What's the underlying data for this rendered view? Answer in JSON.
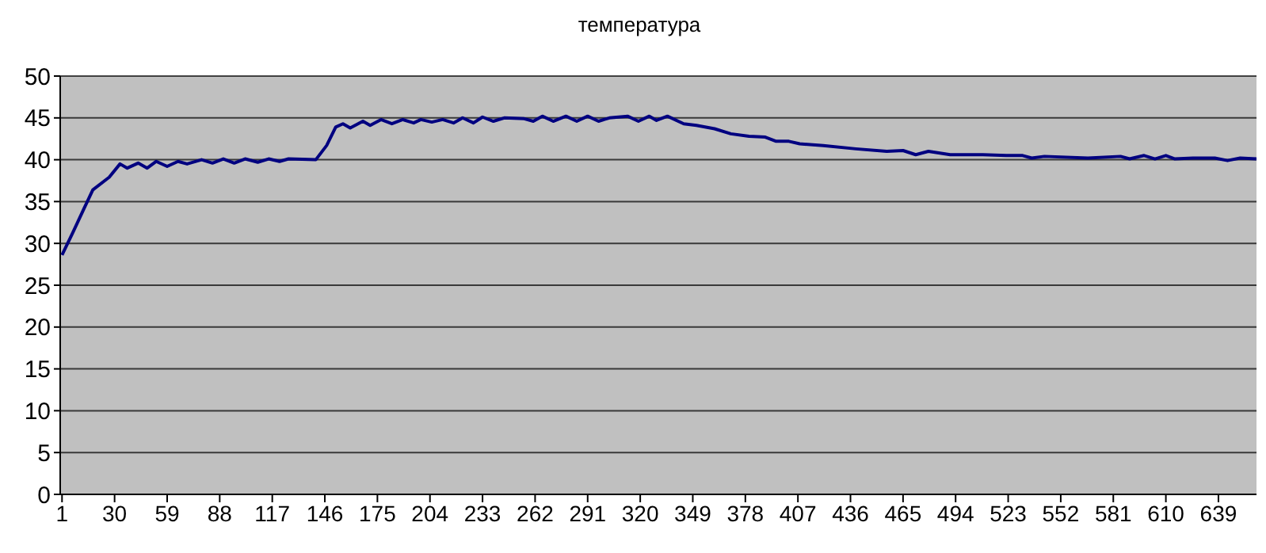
{
  "chart_data": {
    "type": "line",
    "title": "температура",
    "x": [
      1,
      7,
      13,
      18,
      27,
      33,
      37,
      43,
      48,
      53,
      59,
      65,
      70,
      78,
      84,
      90,
      96,
      102,
      109,
      115,
      121,
      126,
      141,
      147,
      152,
      156,
      160,
      167,
      171,
      177,
      183,
      189,
      195,
      199,
      205,
      211,
      217,
      222,
      228,
      233,
      239,
      245,
      256,
      261,
      266,
      272,
      279,
      285,
      291,
      297,
      303,
      313,
      319,
      325,
      329,
      335,
      344,
      351,
      361,
      370,
      380,
      389,
      395,
      402,
      408,
      421,
      439,
      456,
      465,
      472,
      479,
      491,
      509,
      522,
      531,
      536,
      543,
      567,
      585,
      590,
      598,
      604,
      610,
      615,
      625,
      637,
      644,
      651,
      660
    ],
    "series": [
      {
        "color": "#000080",
        "values": [
          28.6,
          31.3,
          34.1,
          36.4,
          37.9,
          39.5,
          39.0,
          39.6,
          39.0,
          39.8,
          39.2,
          39.8,
          39.5,
          40.0,
          39.6,
          40.1,
          39.6,
          40.1,
          39.7,
          40.1,
          39.8,
          40.1,
          40.0,
          41.7,
          43.9,
          44.3,
          43.8,
          44.6,
          44.1,
          44.8,
          44.3,
          44.8,
          44.4,
          44.8,
          44.5,
          44.8,
          44.4,
          45.0,
          44.4,
          45.1,
          44.6,
          45.0,
          44.9,
          44.6,
          45.2,
          44.6,
          45.2,
          44.6,
          45.2,
          44.6,
          45.0,
          45.2,
          44.6,
          45.2,
          44.7,
          45.2,
          44.3,
          44.1,
          43.7,
          43.1,
          42.8,
          42.7,
          42.2,
          42.2,
          41.9,
          41.7,
          41.3,
          41.0,
          41.1,
          40.6,
          41.0,
          40.6,
          40.6,
          40.5,
          40.5,
          40.2,
          40.4,
          40.2,
          40.4,
          40.1,
          40.5,
          40.1,
          40.5,
          40.1,
          40.2,
          40.2,
          39.9,
          40.2,
          40.1
        ]
      }
    ],
    "xlim": [
      0,
      660
    ],
    "xticks": [
      1,
      30,
      59,
      88,
      117,
      146,
      175,
      204,
      233,
      262,
      291,
      320,
      349,
      378,
      407,
      436,
      465,
      494,
      523,
      552,
      581,
      610,
      639
    ],
    "ylim": [
      0,
      50
    ],
    "yticks": [
      0,
      5,
      10,
      15,
      20,
      25,
      30,
      35,
      40,
      45,
      50
    ],
    "grid": "y",
    "legend": false,
    "marker": "none",
    "line_style": "solid"
  }
}
